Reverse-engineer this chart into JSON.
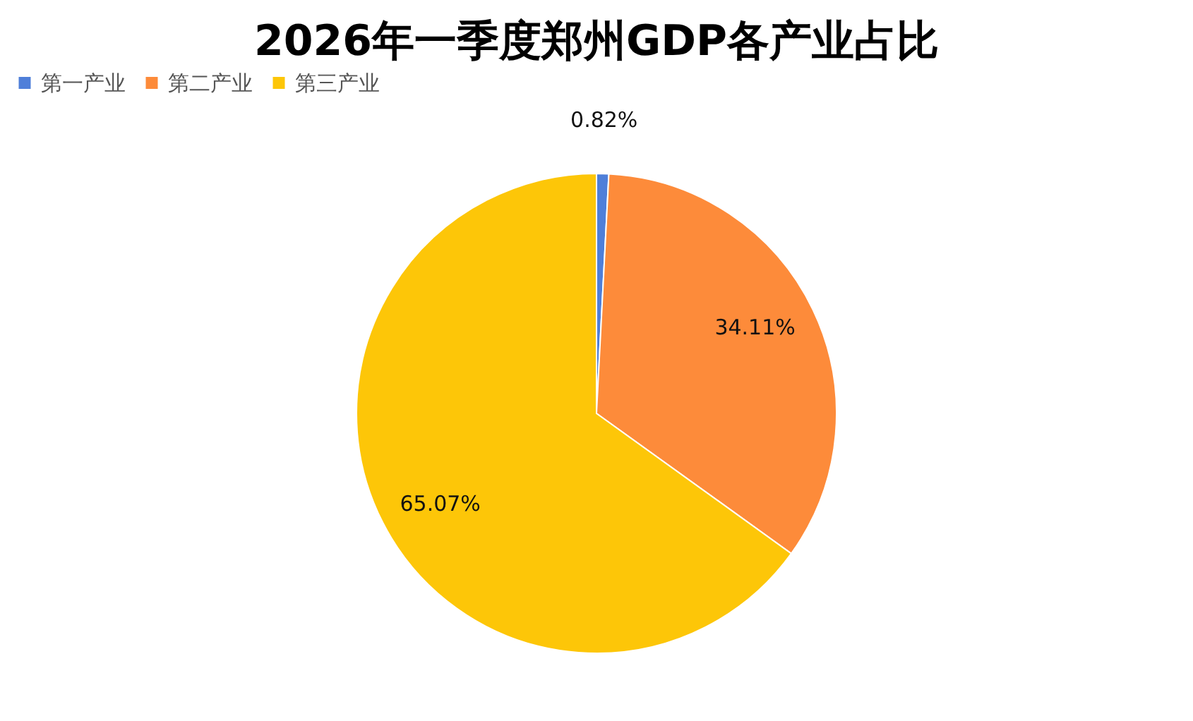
{
  "chart_data": {
    "type": "pie",
    "title": "2026年一季度郑州GDP各产业占比",
    "categories": [
      "第一产业",
      "第二产业",
      "第三产业"
    ],
    "values": [
      0.82,
      34.11,
      65.07
    ],
    "colors": [
      "#4f7fd9",
      "#fd8b3a",
      "#fdc608"
    ],
    "value_labels": [
      "0.82%",
      "34.11%",
      "65.07%"
    ],
    "legend": "top"
  }
}
